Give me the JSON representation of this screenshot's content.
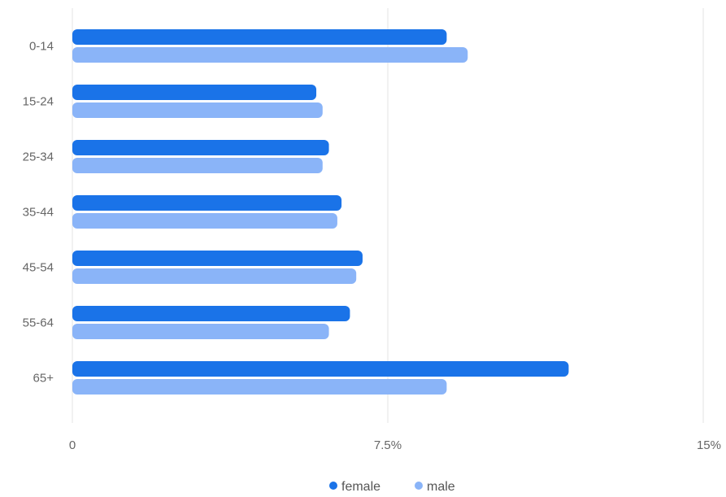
{
  "chart_data": {
    "type": "bar",
    "orientation": "horizontal",
    "categories": [
      "0-14",
      "15-24",
      "25-34",
      "35-44",
      "45-54",
      "55-64",
      "65+"
    ],
    "series": [
      {
        "name": "female",
        "color": "#1a73e8",
        "values": [
          8.9,
          5.8,
          6.1,
          6.4,
          6.9,
          6.6,
          11.8
        ]
      },
      {
        "name": "male",
        "color": "#8ab4f8",
        "values": [
          9.4,
          5.95,
          5.95,
          6.3,
          6.75,
          6.1,
          8.9
        ]
      }
    ],
    "xlim": [
      0,
      15
    ],
    "x_ticks": [
      {
        "value": 0,
        "label": "0"
      },
      {
        "value": 7.5,
        "label": "7.5%"
      },
      {
        "value": 15,
        "label": "15%"
      }
    ],
    "grid": true,
    "legend_position": "bottom"
  }
}
